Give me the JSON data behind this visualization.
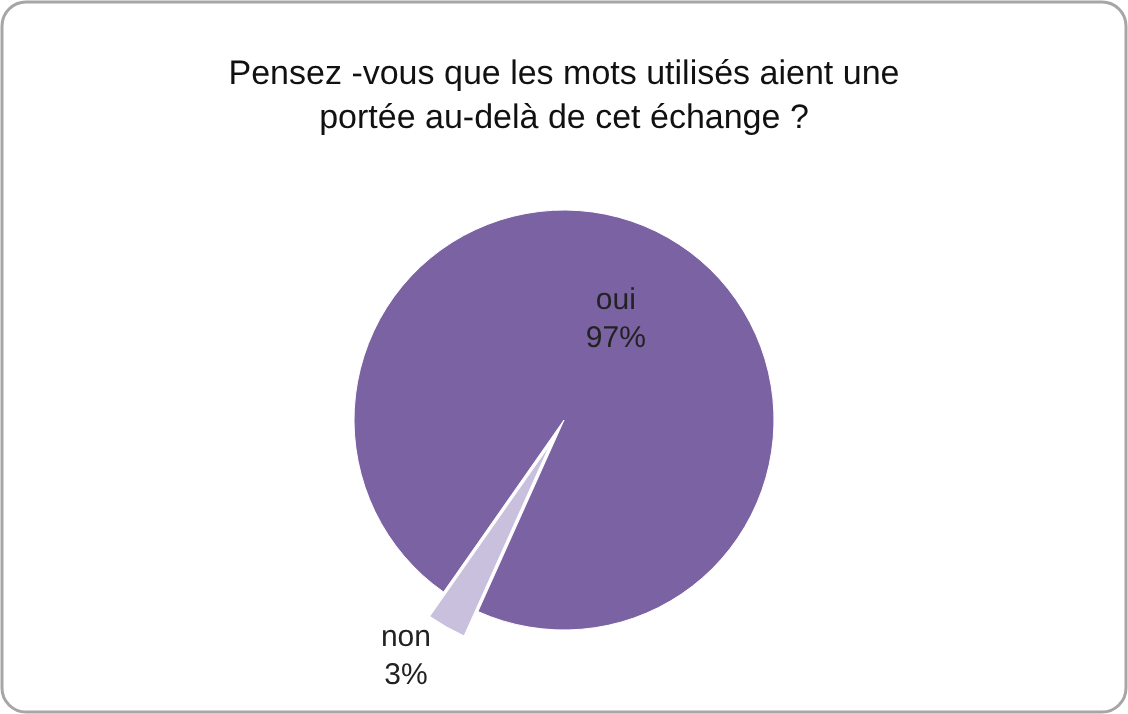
{
  "chart_data": {
    "type": "pie",
    "title": "Pensez -vous que les mots utilisés aient une\nportée au-delà de cet échange ?",
    "categories": [
      "oui",
      "non"
    ],
    "values": [
      97,
      3
    ],
    "value_labels": [
      "97%",
      "3%"
    ],
    "colors": [
      "#7b62a3",
      "#c9c0de"
    ]
  }
}
